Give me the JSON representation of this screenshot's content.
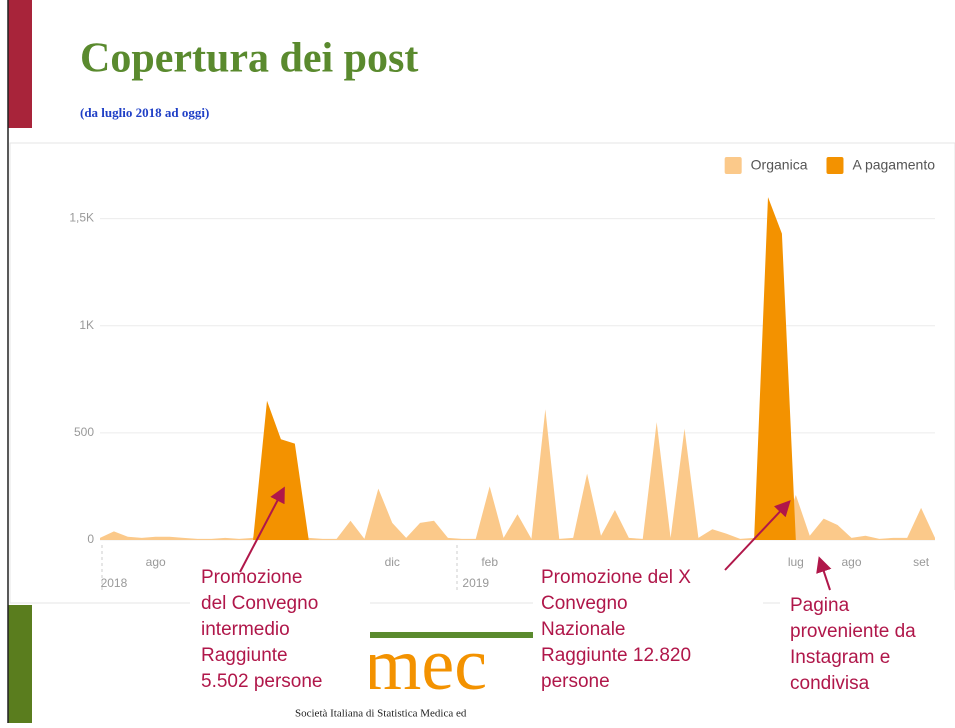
{
  "title": "Copertura dei post",
  "subtitle": "(da luglio 2018 ad oggi)",
  "chart_data": {
    "type": "area",
    "categories": [
      null,
      null,
      null,
      null,
      "ago",
      null,
      null,
      null,
      null,
      null,
      null,
      null,
      null,
      null,
      null,
      null,
      null,
      null,
      null,
      null,
      null,
      "dic",
      null,
      null,
      null,
      null,
      null,
      null,
      "feb",
      null,
      null,
      null,
      null,
      null,
      null,
      null,
      null,
      null,
      null,
      null,
      null,
      null,
      null,
      null,
      null,
      null,
      null,
      null,
      null,
      null,
      "lug",
      null,
      null,
      null,
      "ago",
      null,
      null,
      null,
      null,
      "set",
      null
    ],
    "year_labels": [
      null,
      "2018",
      null,
      null,
      null,
      null,
      null,
      null,
      null,
      null,
      null,
      null,
      null,
      null,
      null,
      null,
      null,
      null,
      null,
      null,
      null,
      null,
      null,
      null,
      null,
      null,
      null,
      "2019",
      null,
      null,
      null,
      null,
      null,
      null,
      null,
      null,
      null,
      null,
      null,
      null,
      null,
      null,
      null,
      null,
      null,
      null,
      null,
      null,
      null,
      null,
      null,
      null,
      null,
      null,
      null,
      null,
      null,
      null,
      null,
      null,
      null
    ],
    "series": [
      {
        "name": "Organica",
        "color": "#fbc98a",
        "values": [
          10,
          40,
          15,
          10,
          15,
          15,
          10,
          5,
          5,
          10,
          5,
          10,
          290,
          60,
          20,
          10,
          5,
          5,
          90,
          5,
          240,
          80,
          10,
          80,
          90,
          10,
          5,
          5,
          250,
          10,
          120,
          5,
          610,
          5,
          10,
          310,
          20,
          140,
          10,
          5,
          550,
          10,
          520,
          10,
          50,
          30,
          5,
          10,
          10,
          30,
          210,
          20,
          100,
          70,
          10,
          20,
          5,
          10,
          10,
          150,
          10
        ]
      },
      {
        "name": "A pagamento",
        "color": "#f39200",
        "values": [
          0,
          0,
          0,
          0,
          0,
          0,
          0,
          0,
          0,
          0,
          0,
          0,
          650,
          470,
          450,
          0,
          0,
          0,
          0,
          0,
          0,
          0,
          0,
          0,
          0,
          0,
          0,
          0,
          0,
          0,
          0,
          0,
          0,
          0,
          0,
          0,
          0,
          0,
          0,
          0,
          0,
          0,
          0,
          0,
          0,
          0,
          0,
          0,
          1600,
          1430,
          0,
          0,
          0,
          0,
          0,
          0,
          0,
          0,
          0,
          0,
          0
        ]
      }
    ],
    "ylim": [
      0,
      1750
    ],
    "yticks": [
      0,
      500,
      {
        "value": 1000,
        "label": "1K"
      },
      {
        "value": 1500,
        "label": "1,5K"
      }
    ],
    "grid": true,
    "legend": "top-right"
  },
  "annotations": [
    [
      "Promozione",
      "del Convegno",
      "intermedio",
      "Raggiunte",
      "5.502 persone"
    ],
    [
      "Promozione del X",
      "Convegno",
      "Nazionale",
      "Raggiunte 12.820",
      "persone"
    ],
    [
      "Pagina",
      "proveniente da",
      "Instagram e",
      "condivisa"
    ]
  ],
  "logo": {
    "text": "smec",
    "caption": "Società Italiana di Statistica Medica ed"
  }
}
